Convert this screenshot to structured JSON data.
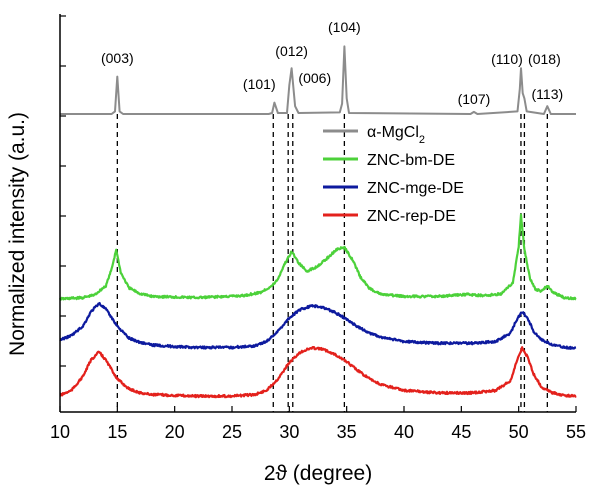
{
  "chart_data": {
    "type": "line",
    "xlabel": "2ϑ (degree)",
    "ylabel": "Normalized intensity (a.u.)",
    "xlim": [
      10,
      55
    ],
    "x_ticks": [
      10,
      15,
      20,
      25,
      30,
      35,
      40,
      45,
      50,
      55
    ],
    "legend_position": "center-right",
    "reference_lines": [
      15.0,
      28.6,
      29.9,
      30.3,
      34.8,
      50.2,
      50.5,
      52.5
    ],
    "peak_labels": [
      {
        "label": "(003)",
        "x": 15.0
      },
      {
        "label": "(101)",
        "x": 28.6
      },
      {
        "label": "(012)",
        "x": 30.2
      },
      {
        "label": "(006)",
        "x": 30.3
      },
      {
        "label": "(104)",
        "x": 34.8
      },
      {
        "label": "(107)",
        "x": 46.1
      },
      {
        "label": "(110)",
        "x": 50.2
      },
      {
        "label": "(018)",
        "x": 50.5
      },
      {
        "label": "(113)",
        "x": 52.5
      }
    ],
    "series": [
      {
        "name": "α-MgCl2",
        "color": "#8c8c8c",
        "x": [
          10,
          14.5,
          14.8,
          15.0,
          15.2,
          15.5,
          20,
          28.2,
          28.5,
          28.7,
          29.0,
          29.8,
          30.0,
          30.2,
          30.5,
          30.8,
          34.4,
          34.6,
          34.8,
          35.0,
          35.2,
          45.8,
          46.1,
          46.4,
          49.9,
          50.1,
          50.2,
          50.35,
          50.5,
          50.7,
          52.2,
          52.5,
          52.8,
          55
        ],
        "y": [
          0,
          0,
          0.05,
          0.72,
          0.05,
          0,
          0,
          0,
          0.02,
          0.22,
          0.02,
          0.02,
          0.55,
          0.88,
          0.15,
          0.02,
          0.03,
          0.2,
          1.3,
          0.3,
          0.02,
          0,
          0.04,
          0,
          0.05,
          0.48,
          0.88,
          0.4,
          0.3,
          0.05,
          0,
          0.15,
          0,
          0
        ]
      },
      {
        "name": "ZNC-bm-DE",
        "color": "#4cd13a",
        "x": [
          10,
          12,
          13,
          14,
          14.5,
          14.9,
          15.3,
          16,
          17,
          18,
          22,
          26,
          27.5,
          28.5,
          29,
          29.5,
          30.2,
          30.8,
          31.5,
          32.3,
          33.2,
          34.1,
          34.8,
          35.5,
          36.2,
          37,
          38,
          40,
          43,
          45.5,
          47,
          48.5,
          49.5,
          50.0,
          50.2,
          50.5,
          51.0,
          51.5,
          52.0,
          52.5,
          53.0,
          54.0,
          55
        ],
        "y": [
          0,
          0.02,
          0.06,
          0.2,
          0.45,
          0.75,
          0.4,
          0.17,
          0.08,
          0.04,
          0.02,
          0.05,
          0.1,
          0.2,
          0.3,
          0.5,
          0.72,
          0.55,
          0.42,
          0.48,
          0.6,
          0.75,
          0.78,
          0.6,
          0.33,
          0.16,
          0.07,
          0.04,
          0.04,
          0.07,
          0.05,
          0.08,
          0.25,
          0.8,
          1.28,
          0.75,
          0.3,
          0.14,
          0.12,
          0.2,
          0.1,
          0.02,
          0
        ]
      },
      {
        "name": "ZNC-mge-DE",
        "color": "#0d1a9e",
        "x": [
          10,
          11,
          12,
          12.7,
          13.4,
          14.0,
          15.0,
          16,
          17,
          18,
          20,
          22,
          25,
          27,
          28,
          29,
          30,
          31,
          32,
          33,
          34,
          35,
          36,
          37,
          38,
          40,
          43,
          46,
          48,
          49.3,
          49.8,
          50.3,
          50.8,
          51.3,
          52,
          53,
          54,
          55
        ],
        "y": [
          0.12,
          0.17,
          0.28,
          0.45,
          0.55,
          0.48,
          0.28,
          0.14,
          0.09,
          0.06,
          0.04,
          0.03,
          0.03,
          0.05,
          0.1,
          0.22,
          0.38,
          0.48,
          0.52,
          0.5,
          0.44,
          0.36,
          0.27,
          0.2,
          0.15,
          0.1,
          0.08,
          0.08,
          0.1,
          0.2,
          0.35,
          0.45,
          0.37,
          0.22,
          0.12,
          0.06,
          0.03,
          0.02
        ]
      },
      {
        "name": "ZNC-rep-DE",
        "color": "#e3211c",
        "x": [
          10,
          11,
          12,
          12.7,
          13.4,
          14.0,
          15.0,
          16,
          17,
          18,
          20,
          22,
          25,
          27,
          28,
          29,
          30,
          31,
          32,
          33,
          34,
          35,
          36,
          37,
          38,
          40,
          43,
          46,
          48,
          49.3,
          49.8,
          50.3,
          50.8,
          51.3,
          52,
          53,
          54,
          55
        ],
        "y": [
          0.02,
          0.08,
          0.25,
          0.45,
          0.55,
          0.45,
          0.22,
          0.1,
          0.05,
          0.03,
          0.02,
          0.01,
          0.01,
          0.03,
          0.08,
          0.22,
          0.42,
          0.55,
          0.6,
          0.58,
          0.52,
          0.43,
          0.32,
          0.22,
          0.15,
          0.08,
          0.05,
          0.05,
          0.08,
          0.2,
          0.42,
          0.6,
          0.48,
          0.28,
          0.12,
          0.05,
          0.02,
          0.01
        ]
      }
    ]
  }
}
